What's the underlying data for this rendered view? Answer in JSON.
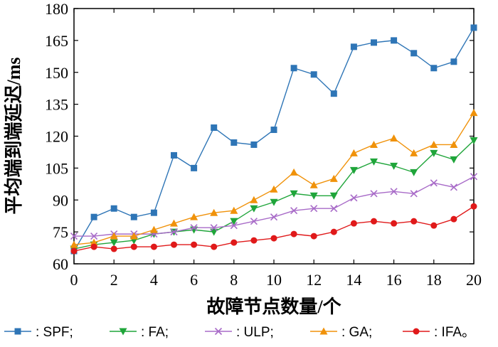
{
  "chart_data": {
    "type": "line",
    "title": "",
    "xlabel": "故障节点数量/个",
    "ylabel": "平均端到端延迟/ms",
    "xlim": [
      0,
      20
    ],
    "ylim": [
      60,
      180
    ],
    "x": [
      0,
      1,
      2,
      3,
      4,
      5,
      6,
      7,
      8,
      9,
      10,
      11,
      12,
      13,
      14,
      15,
      16,
      17,
      18,
      19,
      20
    ],
    "x_ticks": [
      "0",
      "2",
      "4",
      "6",
      "8",
      "10",
      "12",
      "14",
      "16",
      "18",
      "20"
    ],
    "y_ticks": [
      "60",
      "75",
      "90",
      "105",
      "120",
      "135",
      "150",
      "165",
      "180"
    ],
    "grid": false,
    "legend_position": "bottom",
    "series": [
      {
        "name": "SPF",
        "legend_text": ": SPF;",
        "color": "#2e75b6",
        "marker": "square",
        "values": [
          66,
          82,
          86,
          82,
          84,
          111,
          105,
          124,
          117,
          116,
          123,
          152,
          149,
          140,
          162,
          164,
          165,
          159,
          152,
          155,
          171
        ]
      },
      {
        "name": "FA",
        "legend_text": ": FA;",
        "color": "#1fa53a",
        "marker": "triangle-down",
        "values": [
          67,
          69,
          70,
          71,
          74,
          75,
          76,
          75,
          80,
          86,
          89,
          93,
          92,
          92,
          104,
          108,
          106,
          103,
          112,
          109,
          118
        ]
      },
      {
        "name": "ULP",
        "legend_text": ": ULP;",
        "color": "#a86bc8",
        "marker": "x",
        "values": [
          73,
          73,
          74,
          74,
          74,
          75,
          77,
          77,
          78,
          80,
          82,
          85,
          86,
          86,
          91,
          93,
          94,
          93,
          98,
          96,
          101
        ]
      },
      {
        "name": "GA",
        "legend_text": ": GA;",
        "color": "#f0920a",
        "marker": "triangle-up",
        "values": [
          69,
          70,
          73,
          73,
          76,
          79,
          82,
          84,
          85,
          90,
          95,
          103,
          97,
          100,
          112,
          116,
          119,
          112,
          116,
          116,
          131
        ]
      },
      {
        "name": "IFA",
        "legend_text": ": IFA。",
        "color": "#e0191a",
        "marker": "circle",
        "values": [
          66,
          68,
          67,
          68,
          68,
          69,
          69,
          68,
          70,
          71,
          72,
          74,
          73,
          75,
          79,
          80,
          79,
          80,
          78,
          81,
          87
        ]
      }
    ]
  }
}
